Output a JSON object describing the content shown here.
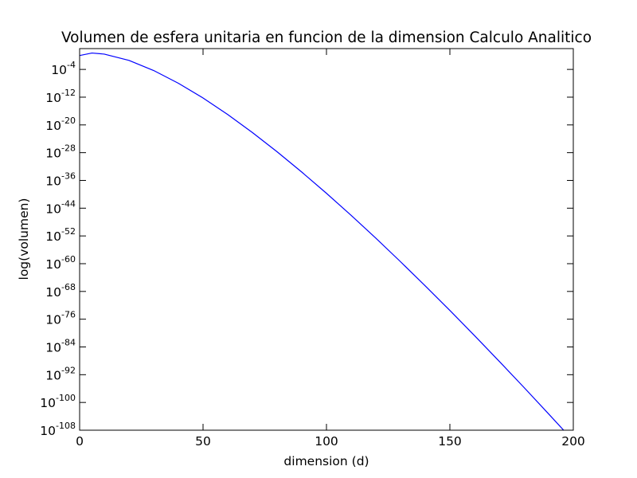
{
  "chart_data": {
    "type": "line",
    "title": "Volumen de esfera unitaria en funcion de la dimension Calculo Analitico",
    "xlabel": "dimension (d)",
    "ylabel": "log(volumen)",
    "xlim": [
      0,
      200
    ],
    "ylim_log10": [
      -108,
      2
    ],
    "y_scale": "log",
    "grid": false,
    "x_ticks": [
      0,
      50,
      100,
      150,
      200
    ],
    "x_tick_labels": [
      "0",
      "50",
      "100",
      "150",
      "200"
    ],
    "y_ticks_log10": [
      -108,
      -100,
      -92,
      -84,
      -76,
      -68,
      -60,
      -52,
      -44,
      -36,
      -28,
      -20,
      -12,
      -4
    ],
    "y_tick_labels": [
      {
        "base": "10",
        "exp": "-108"
      },
      {
        "base": "10",
        "exp": "-100"
      },
      {
        "base": "10",
        "exp": "-92"
      },
      {
        "base": "10",
        "exp": "-84"
      },
      {
        "base": "10",
        "exp": "-76"
      },
      {
        "base": "10",
        "exp": "-68"
      },
      {
        "base": "10",
        "exp": "-60"
      },
      {
        "base": "10",
        "exp": "-52"
      },
      {
        "base": "10",
        "exp": "-44"
      },
      {
        "base": "10",
        "exp": "-36"
      },
      {
        "base": "10",
        "exp": "-28"
      },
      {
        "base": "10",
        "exp": "-20"
      },
      {
        "base": "10",
        "exp": "-12"
      },
      {
        "base": "10",
        "exp": "-4"
      }
    ],
    "series": [
      {
        "color": "#0000ff",
        "x": [
          0,
          5,
          10,
          20,
          30,
          40,
          50,
          60,
          70,
          80,
          90,
          100,
          110,
          120,
          130,
          140,
          150,
          160,
          170,
          180,
          190,
          200
        ],
        "y_log10": [
          0,
          0.72,
          0.41,
          -1.41,
          -4.32,
          -7.99,
          -12.24,
          -17.0,
          -22.2,
          -27.74,
          -33.6,
          -39.71,
          -46.07,
          -52.65,
          -59.43,
          -66.38,
          -73.49,
          -80.75,
          -88.15,
          -95.66,
          -103.3,
          -111.03
        ]
      }
    ]
  }
}
